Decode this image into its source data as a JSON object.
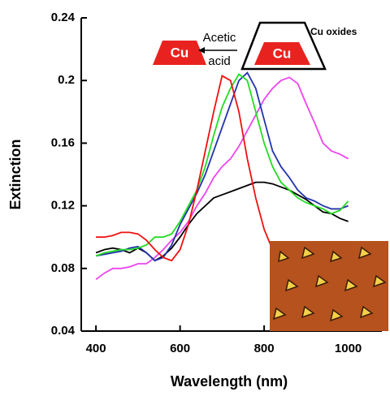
{
  "chart_data": {
    "type": "line",
    "x_label": "Wavelength (nm)",
    "y_label": "Extinction",
    "xlim": [
      365,
      1080
    ],
    "ylim": [
      0.04,
      0.24
    ],
    "xticks": [
      400,
      600,
      800,
      1000
    ],
    "yticks": [
      0.04,
      0.08,
      0.12,
      0.16,
      0.2,
      0.24
    ],
    "annotations": {
      "left_block": "Cu",
      "arrow_top": "Acetic",
      "arrow_bottom": "acid",
      "right_block": "Cu",
      "shell": "Cu oxides"
    },
    "x": [
      400,
      420,
      440,
      460,
      480,
      500,
      520,
      540,
      560,
      580,
      600,
      620,
      640,
      660,
      680,
      700,
      720,
      740,
      760,
      780,
      800,
      820,
      840,
      860,
      880,
      900,
      920,
      940,
      960,
      980,
      1000
    ],
    "series": [
      {
        "color": "#000000",
        "values": [
          0.09,
          0.092,
          0.093,
          0.092,
          0.09,
          0.093,
          0.09,
          0.085,
          0.088,
          0.093,
          0.1,
          0.108,
          0.115,
          0.12,
          0.125,
          0.127,
          0.129,
          0.131,
          0.133,
          0.135,
          0.135,
          0.134,
          0.132,
          0.13,
          0.127,
          0.124,
          0.12,
          0.116,
          0.115,
          0.112,
          0.11
        ]
      },
      {
        "color": "#ee44ee",
        "values": [
          0.073,
          0.077,
          0.08,
          0.08,
          0.081,
          0.083,
          0.083,
          0.087,
          0.092,
          0.098,
          0.103,
          0.11,
          0.12,
          0.128,
          0.138,
          0.145,
          0.15,
          0.158,
          0.168,
          0.178,
          0.188,
          0.195,
          0.2,
          0.202,
          0.198,
          0.185,
          0.173,
          0.16,
          0.155,
          0.153,
          0.15
        ]
      },
      {
        "color": "#2233aa",
        "values": [
          0.088,
          0.089,
          0.09,
          0.091,
          0.093,
          0.094,
          0.09,
          0.085,
          0.087,
          0.095,
          0.108,
          0.118,
          0.128,
          0.14,
          0.155,
          0.17,
          0.185,
          0.2,
          0.205,
          0.195,
          0.175,
          0.155,
          0.145,
          0.138,
          0.13,
          0.125,
          0.123,
          0.12,
          0.118,
          0.118,
          0.12
        ]
      },
      {
        "color": "#22dd22",
        "values": [
          0.088,
          0.09,
          0.091,
          0.092,
          0.092,
          0.093,
          0.095,
          0.1,
          0.1,
          0.102,
          0.11,
          0.12,
          0.13,
          0.145,
          0.165,
          0.183,
          0.195,
          0.204,
          0.2,
          0.18,
          0.16,
          0.145,
          0.135,
          0.13,
          0.125,
          0.122,
          0.12,
          0.118,
          0.115,
          0.117,
          0.123
        ]
      },
      {
        "color": "#ee1111",
        "values": [
          0.1,
          0.1,
          0.101,
          0.103,
          0.103,
          0.102,
          0.098,
          0.092,
          0.087,
          0.085,
          0.092,
          0.108,
          0.13,
          0.155,
          0.18,
          0.203,
          0.2,
          0.18,
          0.15,
          0.125,
          0.105,
          0.092,
          0.085,
          0.082,
          0.08,
          0.079,
          0.078,
          0.077,
          0.076,
          0.076,
          0.075
        ]
      }
    ]
  }
}
